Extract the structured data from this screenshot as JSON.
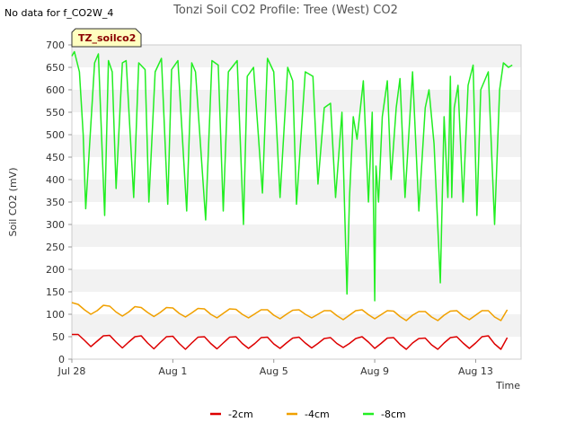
{
  "header": {
    "title": "Tonzi Soil CO2 Profile: Tree (West) CO2",
    "nodata_note": "No data for f_CO2W_4",
    "badge": "TZ_soilco2"
  },
  "colors": {
    "-2cm": "#dd0000",
    "-4cm": "#f0a000",
    "-8cm": "#22ee22",
    "band": "#f2f2f2",
    "badge_fill": "#ffffc0"
  },
  "chart_data": {
    "type": "line",
    "title": "Tonzi Soil CO2 Profile: Tree (West) CO2",
    "xlabel": "Time",
    "ylabel": "Soil CO2 (mV)",
    "x_unit": "day offset from Jul 28",
    "xlim": [
      0,
      17.8
    ],
    "ylim": [
      0,
      700
    ],
    "yticks": [
      0,
      50,
      100,
      150,
      200,
      250,
      300,
      350,
      400,
      450,
      500,
      550,
      600,
      650,
      700
    ],
    "xticks": [
      {
        "label": "Jul 28",
        "day": 0
      },
      {
        "label": "Aug 1",
        "day": 4
      },
      {
        "label": "Aug 5",
        "day": 8
      },
      {
        "label": "Aug 9",
        "day": 12
      },
      {
        "label": "Aug 13",
        "day": 16
      }
    ],
    "grid": "horizontal bands",
    "legend_position": "bottom-center",
    "series": [
      {
        "name": "-2cm",
        "x": [
          0,
          0.25,
          0.5,
          0.75,
          1,
          1.25,
          1.5,
          1.75,
          2,
          2.25,
          2.5,
          2.75,
          3,
          3.25,
          3.5,
          3.75,
          4,
          4.25,
          4.5,
          4.75,
          5,
          5.25,
          5.5,
          5.75,
          6,
          6.25,
          6.5,
          6.75,
          7,
          7.25,
          7.5,
          7.75,
          8,
          8.25,
          8.5,
          8.75,
          9,
          9.25,
          9.5,
          9.75,
          10,
          10.25,
          10.5,
          10.75,
          11,
          11.25,
          11.5,
          11.75,
          12,
          12.25,
          12.5,
          12.75,
          13,
          13.25,
          13.5,
          13.75,
          14,
          14.25,
          14.5,
          14.75,
          15,
          15.25,
          15.5,
          15.75,
          16,
          16.25,
          16.5,
          16.75,
          17,
          17.25
        ],
        "y": [
          55,
          55,
          42,
          28,
          40,
          52,
          53,
          38,
          25,
          38,
          50,
          52,
          36,
          23,
          37,
          50,
          51,
          35,
          22,
          36,
          49,
          50,
          35,
          23,
          36,
          49,
          50,
          35,
          24,
          35,
          48,
          49,
          34,
          24,
          36,
          47,
          49,
          36,
          25,
          35,
          46,
          48,
          35,
          26,
          35,
          46,
          50,
          38,
          24,
          35,
          47,
          48,
          33,
          22,
          36,
          46,
          47,
          32,
          22,
          36,
          48,
          50,
          36,
          24,
          36,
          50,
          52,
          34,
          22,
          48
        ]
      },
      {
        "name": "-4cm",
        "x": [
          0,
          0.25,
          0.5,
          0.75,
          1,
          1.25,
          1.5,
          1.75,
          2,
          2.25,
          2.5,
          2.75,
          3,
          3.25,
          3.5,
          3.75,
          4,
          4.25,
          4.5,
          4.75,
          5,
          5.25,
          5.5,
          5.75,
          6,
          6.25,
          6.5,
          6.75,
          7,
          7.25,
          7.5,
          7.75,
          8,
          8.25,
          8.5,
          8.75,
          9,
          9.25,
          9.5,
          9.75,
          10,
          10.25,
          10.5,
          10.75,
          11,
          11.25,
          11.5,
          11.75,
          12,
          12.25,
          12.5,
          12.75,
          13,
          13.25,
          13.5,
          13.75,
          14,
          14.25,
          14.5,
          14.75,
          15,
          15.25,
          15.5,
          15.75,
          16,
          16.25,
          16.5,
          16.75,
          17,
          17.25
        ],
        "y": [
          126,
          122,
          110,
          100,
          108,
          120,
          118,
          105,
          96,
          105,
          117,
          115,
          104,
          95,
          104,
          115,
          114,
          102,
          94,
          103,
          113,
          112,
          100,
          92,
          102,
          112,
          111,
          100,
          92,
          101,
          110,
          110,
          98,
          90,
          100,
          109,
          110,
          100,
          92,
          100,
          108,
          108,
          97,
          88,
          98,
          108,
          110,
          99,
          90,
          99,
          108,
          107,
          95,
          86,
          98,
          106,
          106,
          94,
          86,
          98,
          107,
          108,
          96,
          88,
          98,
          108,
          108,
          94,
          86,
          110
        ]
      },
      {
        "name": "-8cm",
        "x": [
          0,
          0.1,
          0.3,
          0.45,
          0.55,
          0.9,
          1.05,
          1.3,
          1.45,
          1.6,
          1.75,
          2.0,
          2.15,
          2.45,
          2.65,
          2.9,
          3.05,
          3.3,
          3.55,
          3.8,
          3.95,
          4.2,
          4.55,
          4.75,
          4.9,
          5.3,
          5.55,
          5.8,
          6.0,
          6.2,
          6.55,
          6.8,
          6.95,
          7.2,
          7.55,
          7.75,
          8.0,
          8.25,
          8.55,
          8.75,
          8.9,
          9.25,
          9.55,
          9.75,
          10.0,
          10.25,
          10.45,
          10.7,
          10.9,
          11.0,
          11.15,
          11.3,
          11.55,
          11.75,
          11.9,
          12.0,
          12.05,
          12.15,
          12.3,
          12.5,
          12.65,
          12.85,
          13.0,
          13.2,
          13.5,
          13.75,
          14.0,
          14.15,
          14.35,
          14.6,
          14.75,
          14.9,
          15.0,
          15.05,
          15.15,
          15.3,
          15.5,
          15.7,
          15.9,
          16.05,
          16.2,
          16.5,
          16.75,
          16.95,
          17.1,
          17.3,
          17.45
        ],
        "y": [
          675,
          685,
          640,
          500,
          335,
          660,
          680,
          320,
          665,
          640,
          380,
          660,
          665,
          360,
          660,
          645,
          350,
          640,
          670,
          345,
          645,
          665,
          330,
          660,
          640,
          310,
          665,
          655,
          330,
          640,
          665,
          300,
          630,
          650,
          370,
          670,
          640,
          360,
          650,
          620,
          345,
          640,
          630,
          390,
          560,
          570,
          360,
          550,
          145,
          360,
          540,
          490,
          620,
          350,
          550,
          130,
          430,
          350,
          540,
          620,
          400,
          560,
          625,
          360,
          640,
          330,
          560,
          600,
          480,
          170,
          540,
          360,
          630,
          360,
          560,
          610,
          350,
          610,
          655,
          320,
          600,
          640,
          300,
          600,
          660,
          650,
          655
        ]
      }
    ]
  },
  "legend": {
    "items": [
      {
        "label": "-2cm"
      },
      {
        "label": "-4cm"
      },
      {
        "label": "-8cm"
      }
    ]
  }
}
